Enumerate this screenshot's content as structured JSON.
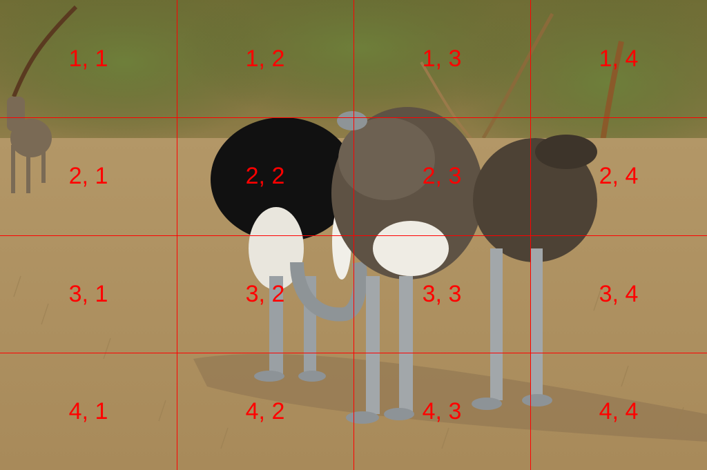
{
  "photo": {
    "subject": "ostrich-group",
    "colors": {
      "sky_trees": "#7d7a3c",
      "ground": "#b39767",
      "male_plumage": "#111111",
      "female_plumage": "#5e5244",
      "legs": "#9aa0a4",
      "grid": "#ff0000"
    }
  },
  "grid": {
    "rows": 4,
    "cols": 4,
    "labels": [
      [
        "1, 1",
        "1, 2",
        "1, 3",
        "1, 4"
      ],
      [
        "2, 1",
        "2, 2",
        "2, 3",
        "2, 4"
      ],
      [
        "3, 1",
        "3, 2",
        "3, 3",
        "3, 4"
      ],
      [
        "4, 1",
        "4, 2",
        "4, 3",
        "4, 4"
      ]
    ]
  }
}
